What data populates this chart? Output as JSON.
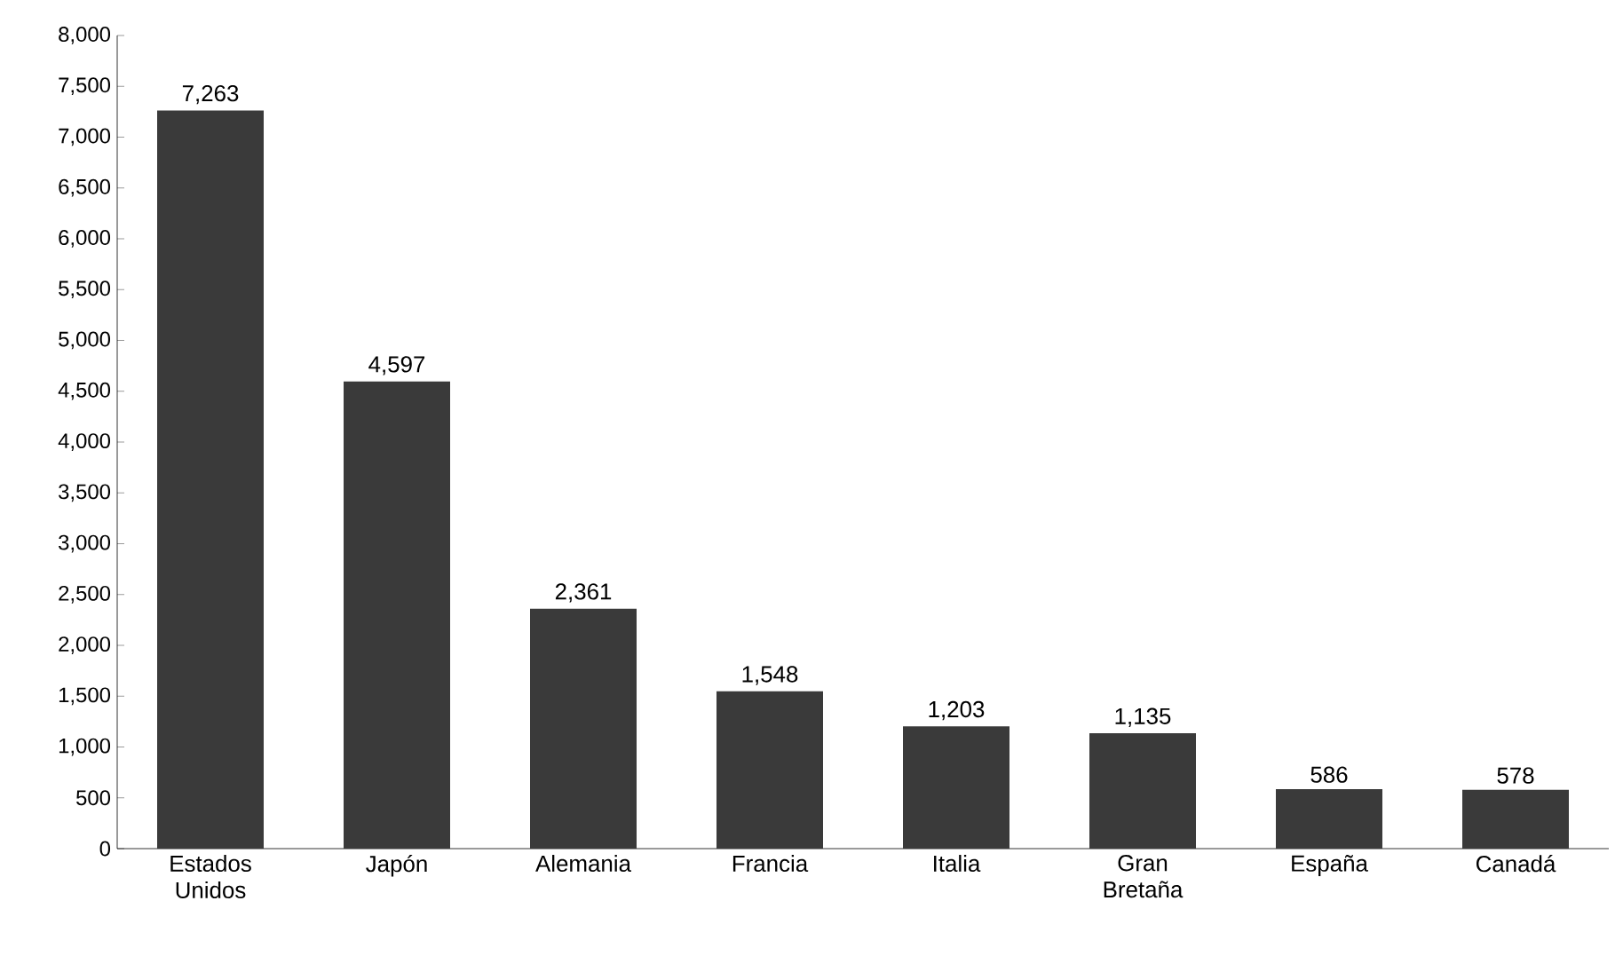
{
  "chart_data": {
    "type": "bar",
    "categories": [
      "Estados Unidos",
      "Japón",
      "Alemania",
      "Francia",
      "Italia",
      "Gran Bretaña",
      "España",
      "Canadá"
    ],
    "values": [
      7263,
      4597,
      2361,
      1548,
      1203,
      1135,
      586,
      578
    ],
    "value_labels": [
      "7,263",
      "4,597",
      "2,361",
      "1,548",
      "1,203",
      "1,135",
      "586",
      "578"
    ],
    "color": "#3a3a3a",
    "ylim": [
      0,
      8000
    ],
    "yticks": [
      0,
      500,
      {
        "value": 1000,
        "label": "1,000"
      },
      {
        "value": 1500,
        "label": "1,500"
      },
      {
        "value": 2000,
        "label": "2,000"
      },
      {
        "value": 2500,
        "label": "2,500"
      },
      {
        "value": 3000,
        "label": "3,000"
      },
      {
        "value": 3500,
        "label": "3,500"
      },
      {
        "value": 4000,
        "label": "4,000"
      },
      {
        "value": 4500,
        "label": "4,500"
      },
      {
        "value": 5000,
        "label": "5,000"
      },
      {
        "value": 5500,
        "label": "5,500"
      },
      {
        "value": 6000,
        "label": "6,000"
      },
      {
        "value": 6500,
        "label": "6,500"
      },
      {
        "value": 7000,
        "label": "7,000"
      },
      {
        "value": 7500,
        "label": "7,500"
      },
      {
        "value": 8000,
        "label": "8,000"
      }
    ],
    "grid": false
  }
}
